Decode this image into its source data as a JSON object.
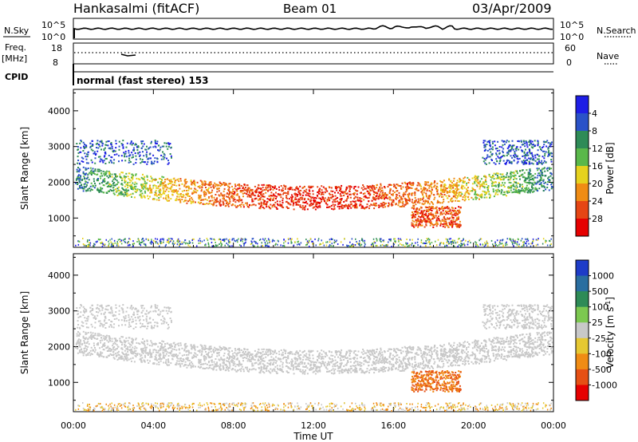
{
  "header": {
    "station": "Hankasalmi (fitACF)",
    "beam": "Beam 01",
    "date": "03/Apr/2009"
  },
  "summary": {
    "nsky_label": "N.Sky",
    "nsearch_label": "N.Search",
    "nsky_ticks": [
      "10^5",
      "10^0"
    ],
    "nsearch_ticks": [
      "10^5",
      "10^0"
    ],
    "freq_label": "Freq.",
    "freq_unit": "[MHz]",
    "freq_ticks": [
      "18",
      "8"
    ],
    "nave_label": "Nave",
    "nave_ticks": [
      "60",
      "0"
    ],
    "cpid_label": "CPID",
    "cpid_text": "normal (fast stereo) 153"
  },
  "chart_data": [
    {
      "type": "heatmap",
      "name": "power",
      "ylabel": "Slant Range [km]",
      "yticks": [
        1000,
        2000,
        3000,
        4000
      ],
      "ylim": [
        180,
        4600
      ],
      "xlim": [
        0,
        24
      ],
      "colorbar": {
        "label": "Power [dB]",
        "ticks": [
          "4",
          "8",
          "12",
          "16",
          "20",
          "24",
          "28"
        ],
        "colors": [
          "#1e1ee6",
          "#2a52c8",
          "#2e8b57",
          "#5ab84a",
          "#e6d21e",
          "#f08c14",
          "#e64614",
          "#e60000"
        ]
      }
    },
    {
      "type": "heatmap",
      "name": "velocity",
      "ylabel": "Slant Range [km]",
      "yticks": [
        1000,
        2000,
        3000,
        4000
      ],
      "ylim": [
        180,
        4600
      ],
      "xlim": [
        0,
        24
      ],
      "xlabel": "Time UT",
      "xticks": [
        "00:00",
        "04:00",
        "08:00",
        "12:00",
        "16:00",
        "20:00",
        "00:00"
      ],
      "colorbar": {
        "label": "Velocity",
        "unit_base": "[m s",
        "unit_exp": "-1",
        "unit_close": "]",
        "ticks": [
          "1000",
          "500",
          "100",
          "25",
          "-25",
          "-100",
          "-500",
          "-1000"
        ],
        "colors": [
          "#1e3cc8",
          "#2a6ea0",
          "#2e8b57",
          "#7cc850",
          "#c8c8c8",
          "#e6c832",
          "#f08c14",
          "#e65014",
          "#e60000"
        ]
      }
    }
  ]
}
